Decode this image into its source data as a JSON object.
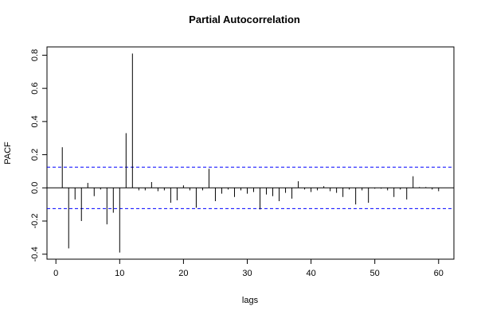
{
  "chart_data": {
    "type": "bar",
    "title": "Partial Autocorrelation",
    "xlabel": "lags",
    "ylabel": "PACF",
    "xlim": [
      -1.4,
      62.4
    ],
    "ylim": [
      -0.43,
      0.85
    ],
    "x_ticks": [
      0,
      10,
      20,
      30,
      40,
      50,
      60
    ],
    "y_ticks": [
      -0.4,
      -0.2,
      0.0,
      0.2,
      0.4,
      0.6,
      0.8
    ],
    "y_tick_labels": [
      "-0.4",
      "-0.2",
      "0.0",
      "0.2",
      "0.4",
      "0.6",
      "0.8"
    ],
    "confidence_band": 0.125,
    "ci_color": "#0000ff",
    "bar_color": "#000000",
    "grid": false,
    "x": [
      1,
      2,
      3,
      4,
      5,
      6,
      7,
      8,
      9,
      10,
      11,
      12,
      13,
      14,
      15,
      16,
      17,
      18,
      19,
      20,
      21,
      22,
      23,
      24,
      25,
      26,
      27,
      28,
      29,
      30,
      31,
      32,
      33,
      34,
      35,
      36,
      37,
      38,
      39,
      40,
      41,
      42,
      43,
      44,
      45,
      46,
      47,
      48,
      49,
      50,
      51,
      52,
      53,
      54,
      55,
      56,
      57,
      58,
      59,
      60
    ],
    "values": [
      0.245,
      -0.365,
      -0.07,
      -0.2,
      0.03,
      -0.05,
      -0.01,
      -0.22,
      -0.15,
      -0.39,
      0.33,
      0.81,
      -0.015,
      -0.015,
      0.035,
      -0.02,
      -0.015,
      -0.09,
      -0.075,
      0.015,
      -0.015,
      -0.12,
      -0.015,
      0.115,
      -0.08,
      -0.035,
      -0.01,
      -0.055,
      -0.015,
      -0.035,
      -0.025,
      -0.13,
      -0.04,
      -0.05,
      -0.08,
      -0.03,
      -0.065,
      0.04,
      -0.01,
      -0.025,
      -0.015,
      0.01,
      -0.02,
      -0.03,
      -0.055,
      -0.01,
      -0.1,
      -0.015,
      -0.09,
      -0.005,
      -0.005,
      -0.015,
      -0.055,
      -0.01,
      -0.07,
      0.07,
      0.005,
      0.005,
      -0.01,
      -0.02
    ]
  }
}
